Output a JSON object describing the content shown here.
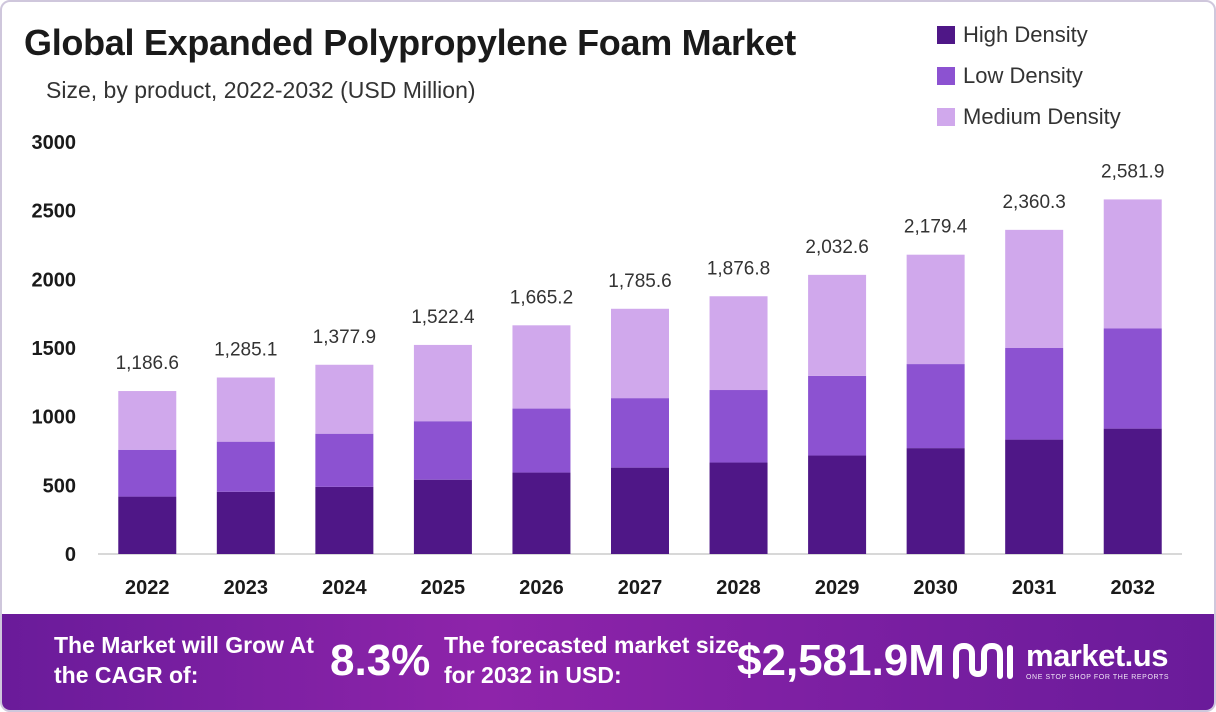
{
  "title": "Global Expanded Polypropylene Foam Market",
  "subtitle": "Size, by product, 2022-2032 (USD Million)",
  "colors": {
    "high_density": "#4f1787",
    "low_density": "#8c52d1",
    "medium_density": "#d0a8ec",
    "axis": "#cccccc"
  },
  "chart_data": {
    "type": "bar",
    "stacked": true,
    "title": "Global Expanded Polypropylene Foam Market",
    "subtitle": "Size, by product, 2022-2032 (USD Million)",
    "categories": [
      "2022",
      "2023",
      "2024",
      "2025",
      "2026",
      "2027",
      "2028",
      "2029",
      "2030",
      "2031",
      "2032"
    ],
    "series": [
      {
        "name": "High Density",
        "values": [
          418,
          453,
          489,
          541,
          593,
          629,
          666,
          717,
          771,
          833,
          913
        ]
      },
      {
        "name": "Low Density",
        "values": [
          341,
          365,
          387,
          426,
          466,
          506,
          528,
          580,
          612,
          667,
          729
        ]
      },
      {
        "name": "Medium Density",
        "values": [
          427.6,
          467.1,
          501.9,
          555.4,
          606.2,
          650.6,
          682.8,
          735.6,
          796.4,
          860.3,
          939.9
        ]
      }
    ],
    "totals": [
      1186.6,
      1285.1,
      1377.9,
      1522.4,
      1665.2,
      1785.6,
      1876.8,
      2032.6,
      2179.4,
      2360.3,
      2581.9
    ],
    "total_labels": [
      "1,186.6",
      "1,285.1",
      "1,377.9",
      "1,522.4",
      "1,665.2",
      "1,785.6",
      "1,876.8",
      "2,032.6",
      "2,179.4",
      "2,360.3",
      "2,581.9"
    ],
    "yticks": [
      "0",
      "500",
      "1000",
      "1500",
      "2000",
      "2500",
      "3000"
    ],
    "ylim": [
      0,
      3000
    ],
    "xlabel": "",
    "ylabel": "",
    "grid": false,
    "legend": "top-right"
  },
  "footer": {
    "cagr_label": "The Market will Grow At the CAGR of:",
    "cagr_value": "8.3%",
    "size_label": "The forecasted market size for 2032 in USD:",
    "size_value": "$2,581.9M",
    "brand": "market.us",
    "tagline": "ONE STOP SHOP FOR THE REPORTS"
  }
}
